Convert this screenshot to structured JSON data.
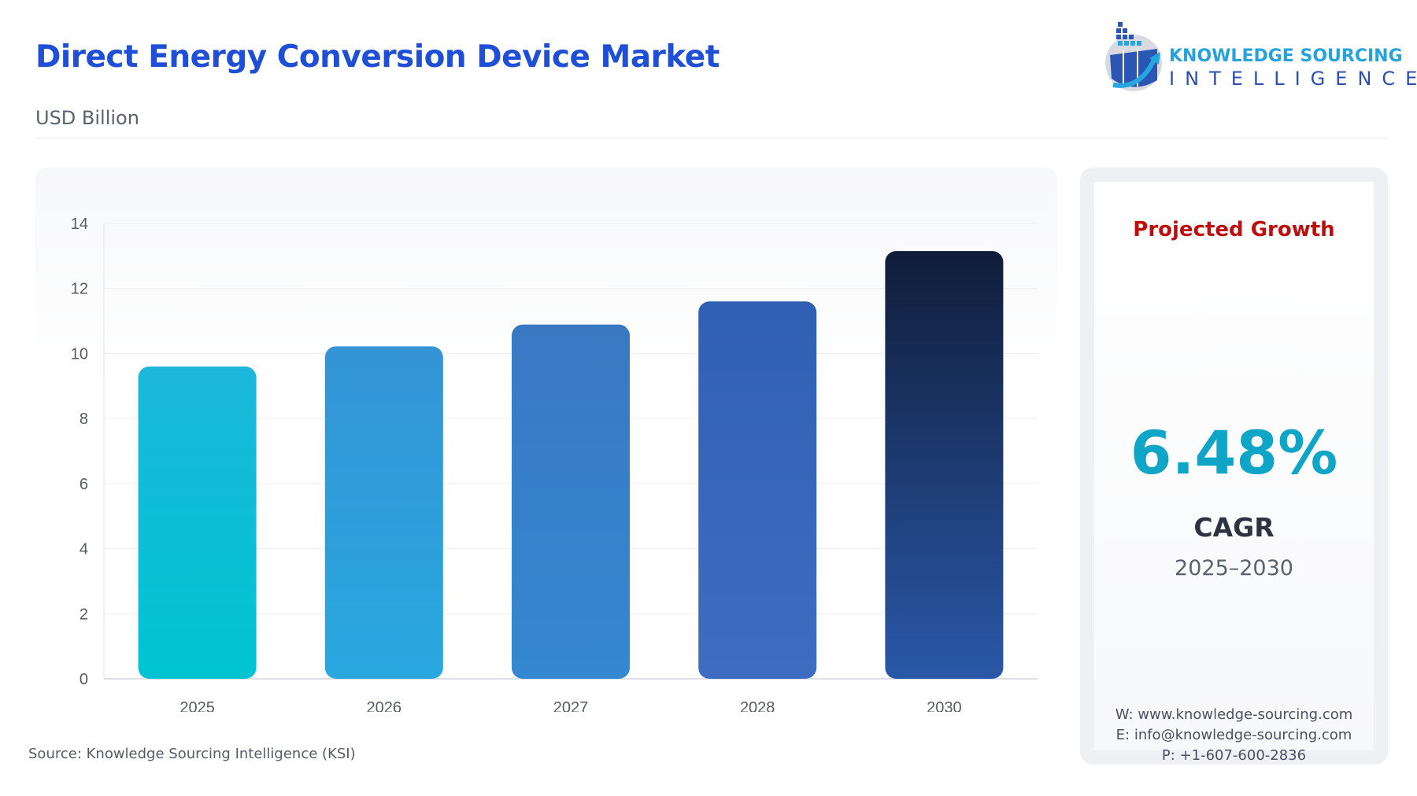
{
  "header": {
    "title": "Direct Energy Conversion Device Market",
    "subtitle": "USD Billion"
  },
  "logo": {
    "line1": "KNOWLEDGE SOURCING",
    "line2": "INTELLIGENCE"
  },
  "source": "Source: Knowledge Sourcing Intelligence (KSI)",
  "panel": {
    "heading": "Projected Growth",
    "cagr_value": "6.48%",
    "cagr_label": "CAGR",
    "period": "2025–2030",
    "website": "W: www.knowledge-sourcing.com",
    "email": "E: info@knowledge-sourcing.com",
    "phone": "P: +1-607-600-2836"
  },
  "chart_data": {
    "type": "bar",
    "title": "",
    "xlabel": "",
    "ylabel": "",
    "categories": [
      "2025",
      "2026",
      "2027",
      "2028",
      "2030"
    ],
    "values": [
      9.6,
      10.22,
      10.89,
      11.6,
      13.15
    ],
    "ylim": [
      0,
      14
    ],
    "yticks": [
      0,
      2,
      4,
      6,
      8,
      10,
      12,
      14
    ],
    "grid": true,
    "colors": [
      [
        "#1cb8dc",
        "#00c4d2"
      ],
      [
        "#3494d6",
        "#29a8e0"
      ],
      [
        "#3a78c4",
        "#3488d0"
      ],
      [
        "#3060b4",
        "#3e6cc0"
      ],
      [
        "#101d3a",
        "#2a58a8"
      ]
    ]
  }
}
